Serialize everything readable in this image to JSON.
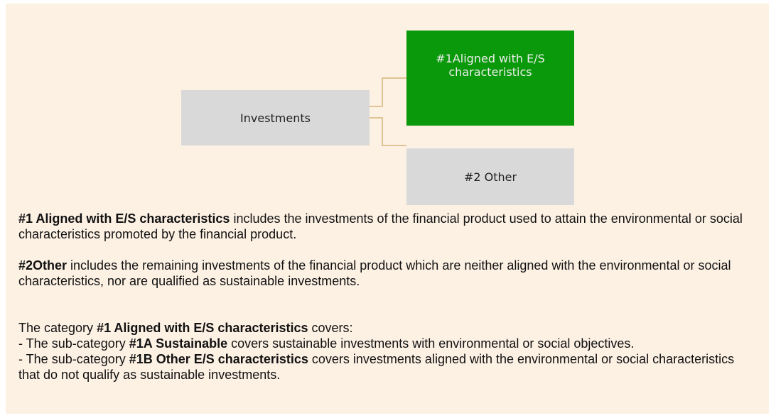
{
  "nodes": [
    {
      "label": "Investments"
    },
    {
      "label": "#1Aligned with E/S characteristics"
    },
    {
      "label": "#2 Other"
    }
  ],
  "notes": [
    {
      "bold": "#1 Aligned with E/S characteristics",
      "text": " includes the investments of the financial product used to attain the environmental or social characteristics promoted by the financial product."
    },
    {
      "bold": "#2Other",
      "text": " includes the remaining investments of the financial product which are neither aligned with the environmental or social characteristics, nor are qualified as sustainable investments."
    }
  ],
  "category": {
    "before": "The category ",
    "bold": "#1 Aligned with E/S characteristics",
    "after": " covers:",
    "items": [
      {
        "before": "- The sub-category ",
        "bold": "#1A Sustainable",
        "after": " covers sustainable investments with environmental or social objectives."
      },
      {
        "before": "- The sub-category ",
        "bold": "#1B Other E/S characteristics",
        "after": " covers investments aligned with the environmental or social characteristics that do not qualify as sustainable investments."
      }
    ]
  }
}
